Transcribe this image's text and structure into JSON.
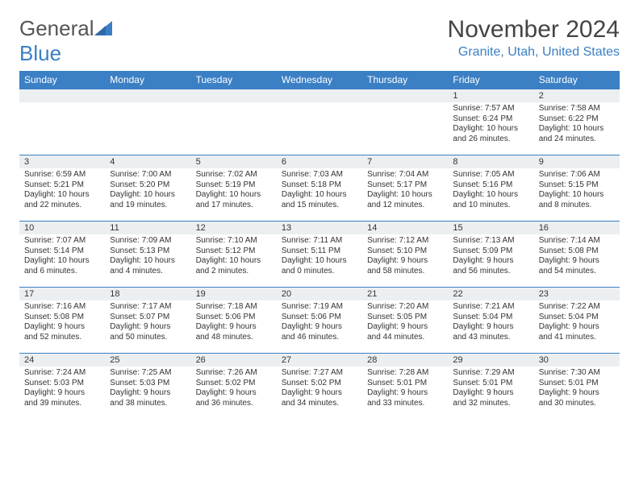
{
  "logo": {
    "word1": "General",
    "word2": "Blue"
  },
  "title": "November 2024",
  "location": "Granite, Utah, United States",
  "colors": {
    "accent": "#3b7fc4",
    "header_bg": "#3b7fc4",
    "header_text": "#ffffff",
    "daynum_bg": "#eceff1",
    "border": "#3b7fc4",
    "text": "#333333"
  },
  "font": {
    "family": "Arial",
    "title_size": 30,
    "location_size": 16,
    "weekday_size": 12,
    "daynum_size": 11,
    "body_size": 10
  },
  "weekdays": [
    "Sunday",
    "Monday",
    "Tuesday",
    "Wednesday",
    "Thursday",
    "Friday",
    "Saturday"
  ],
  "weeks": [
    [
      {
        "n": "",
        "sunrise": "",
        "sunset": "",
        "daylight": ""
      },
      {
        "n": "",
        "sunrise": "",
        "sunset": "",
        "daylight": ""
      },
      {
        "n": "",
        "sunrise": "",
        "sunset": "",
        "daylight": ""
      },
      {
        "n": "",
        "sunrise": "",
        "sunset": "",
        "daylight": ""
      },
      {
        "n": "",
        "sunrise": "",
        "sunset": "",
        "daylight": ""
      },
      {
        "n": "1",
        "sunrise": "Sunrise: 7:57 AM",
        "sunset": "Sunset: 6:24 PM",
        "daylight": "Daylight: 10 hours and 26 minutes."
      },
      {
        "n": "2",
        "sunrise": "Sunrise: 7:58 AM",
        "sunset": "Sunset: 6:22 PM",
        "daylight": "Daylight: 10 hours and 24 minutes."
      }
    ],
    [
      {
        "n": "3",
        "sunrise": "Sunrise: 6:59 AM",
        "sunset": "Sunset: 5:21 PM",
        "daylight": "Daylight: 10 hours and 22 minutes."
      },
      {
        "n": "4",
        "sunrise": "Sunrise: 7:00 AM",
        "sunset": "Sunset: 5:20 PM",
        "daylight": "Daylight: 10 hours and 19 minutes."
      },
      {
        "n": "5",
        "sunrise": "Sunrise: 7:02 AM",
        "sunset": "Sunset: 5:19 PM",
        "daylight": "Daylight: 10 hours and 17 minutes."
      },
      {
        "n": "6",
        "sunrise": "Sunrise: 7:03 AM",
        "sunset": "Sunset: 5:18 PM",
        "daylight": "Daylight: 10 hours and 15 minutes."
      },
      {
        "n": "7",
        "sunrise": "Sunrise: 7:04 AM",
        "sunset": "Sunset: 5:17 PM",
        "daylight": "Daylight: 10 hours and 12 minutes."
      },
      {
        "n": "8",
        "sunrise": "Sunrise: 7:05 AM",
        "sunset": "Sunset: 5:16 PM",
        "daylight": "Daylight: 10 hours and 10 minutes."
      },
      {
        "n": "9",
        "sunrise": "Sunrise: 7:06 AM",
        "sunset": "Sunset: 5:15 PM",
        "daylight": "Daylight: 10 hours and 8 minutes."
      }
    ],
    [
      {
        "n": "10",
        "sunrise": "Sunrise: 7:07 AM",
        "sunset": "Sunset: 5:14 PM",
        "daylight": "Daylight: 10 hours and 6 minutes."
      },
      {
        "n": "11",
        "sunrise": "Sunrise: 7:09 AM",
        "sunset": "Sunset: 5:13 PM",
        "daylight": "Daylight: 10 hours and 4 minutes."
      },
      {
        "n": "12",
        "sunrise": "Sunrise: 7:10 AM",
        "sunset": "Sunset: 5:12 PM",
        "daylight": "Daylight: 10 hours and 2 minutes."
      },
      {
        "n": "13",
        "sunrise": "Sunrise: 7:11 AM",
        "sunset": "Sunset: 5:11 PM",
        "daylight": "Daylight: 10 hours and 0 minutes."
      },
      {
        "n": "14",
        "sunrise": "Sunrise: 7:12 AM",
        "sunset": "Sunset: 5:10 PM",
        "daylight": "Daylight: 9 hours and 58 minutes."
      },
      {
        "n": "15",
        "sunrise": "Sunrise: 7:13 AM",
        "sunset": "Sunset: 5:09 PM",
        "daylight": "Daylight: 9 hours and 56 minutes."
      },
      {
        "n": "16",
        "sunrise": "Sunrise: 7:14 AM",
        "sunset": "Sunset: 5:08 PM",
        "daylight": "Daylight: 9 hours and 54 minutes."
      }
    ],
    [
      {
        "n": "17",
        "sunrise": "Sunrise: 7:16 AM",
        "sunset": "Sunset: 5:08 PM",
        "daylight": "Daylight: 9 hours and 52 minutes."
      },
      {
        "n": "18",
        "sunrise": "Sunrise: 7:17 AM",
        "sunset": "Sunset: 5:07 PM",
        "daylight": "Daylight: 9 hours and 50 minutes."
      },
      {
        "n": "19",
        "sunrise": "Sunrise: 7:18 AM",
        "sunset": "Sunset: 5:06 PM",
        "daylight": "Daylight: 9 hours and 48 minutes."
      },
      {
        "n": "20",
        "sunrise": "Sunrise: 7:19 AM",
        "sunset": "Sunset: 5:06 PM",
        "daylight": "Daylight: 9 hours and 46 minutes."
      },
      {
        "n": "21",
        "sunrise": "Sunrise: 7:20 AM",
        "sunset": "Sunset: 5:05 PM",
        "daylight": "Daylight: 9 hours and 44 minutes."
      },
      {
        "n": "22",
        "sunrise": "Sunrise: 7:21 AM",
        "sunset": "Sunset: 5:04 PM",
        "daylight": "Daylight: 9 hours and 43 minutes."
      },
      {
        "n": "23",
        "sunrise": "Sunrise: 7:22 AM",
        "sunset": "Sunset: 5:04 PM",
        "daylight": "Daylight: 9 hours and 41 minutes."
      }
    ],
    [
      {
        "n": "24",
        "sunrise": "Sunrise: 7:24 AM",
        "sunset": "Sunset: 5:03 PM",
        "daylight": "Daylight: 9 hours and 39 minutes."
      },
      {
        "n": "25",
        "sunrise": "Sunrise: 7:25 AM",
        "sunset": "Sunset: 5:03 PM",
        "daylight": "Daylight: 9 hours and 38 minutes."
      },
      {
        "n": "26",
        "sunrise": "Sunrise: 7:26 AM",
        "sunset": "Sunset: 5:02 PM",
        "daylight": "Daylight: 9 hours and 36 minutes."
      },
      {
        "n": "27",
        "sunrise": "Sunrise: 7:27 AM",
        "sunset": "Sunset: 5:02 PM",
        "daylight": "Daylight: 9 hours and 34 minutes."
      },
      {
        "n": "28",
        "sunrise": "Sunrise: 7:28 AM",
        "sunset": "Sunset: 5:01 PM",
        "daylight": "Daylight: 9 hours and 33 minutes."
      },
      {
        "n": "29",
        "sunrise": "Sunrise: 7:29 AM",
        "sunset": "Sunset: 5:01 PM",
        "daylight": "Daylight: 9 hours and 32 minutes."
      },
      {
        "n": "30",
        "sunrise": "Sunrise: 7:30 AM",
        "sunset": "Sunset: 5:01 PM",
        "daylight": "Daylight: 9 hours and 30 minutes."
      }
    ]
  ]
}
